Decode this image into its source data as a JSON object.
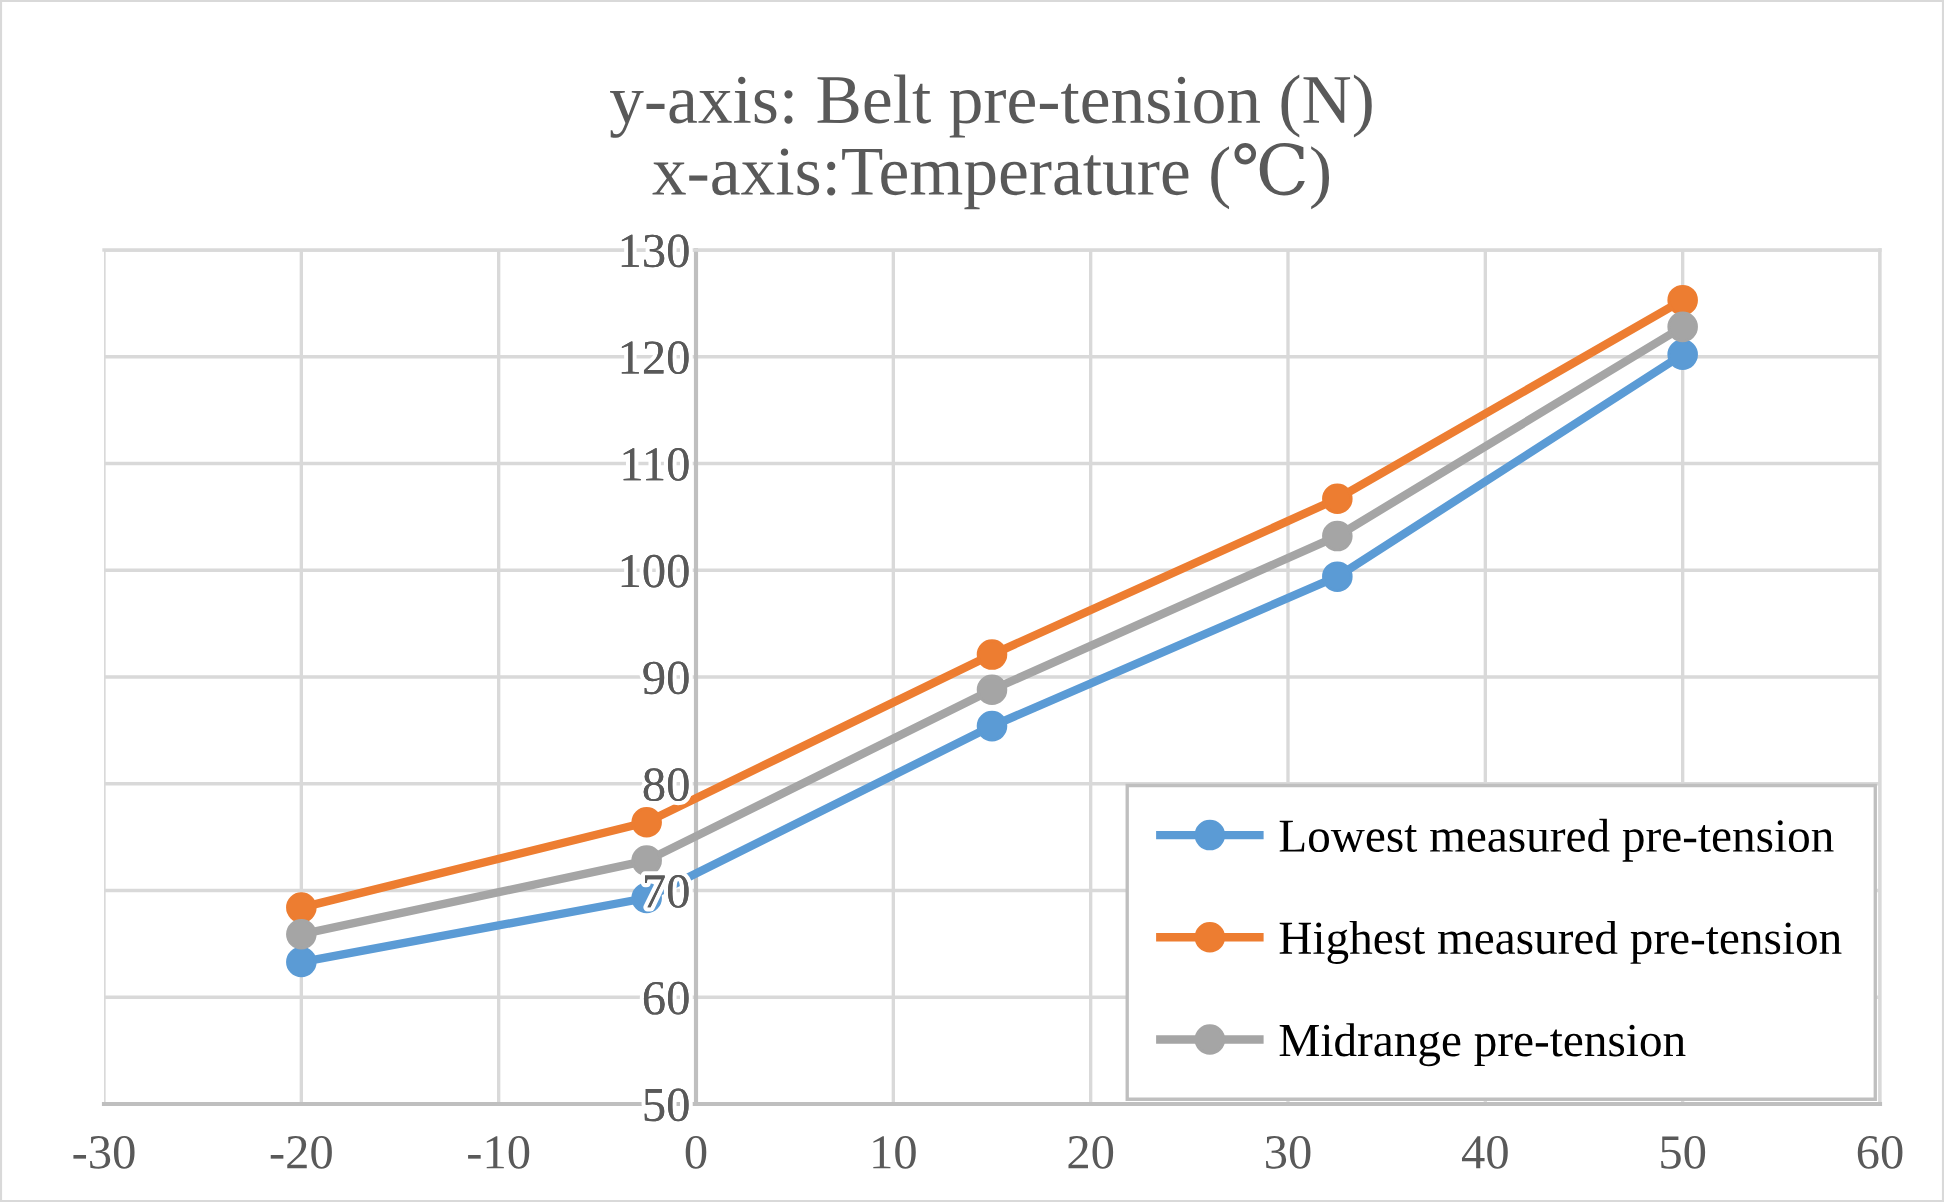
{
  "chart_data": {
    "type": "line",
    "title": "y-axis: Belt pre-tension (N)\nx-axis:Temperature (℃)",
    "x": [
      -20,
      -2.5,
      15,
      32.5,
      50
    ],
    "series": [
      {
        "name": "Lowest measured pre-tension",
        "color": "#5b9bd5",
        "values": [
          63.3,
          69.3,
          85.4,
          99.4,
          120.2
        ]
      },
      {
        "name": "Highest measured pre-tension",
        "color": "#ed7d31",
        "values": [
          68.4,
          76.4,
          92.1,
          106.7,
          125.3
        ]
      },
      {
        "name": "Midrange pre-tension",
        "color": "#a5a5a5",
        "values": [
          65.9,
          72.8,
          88.8,
          103.2,
          122.8
        ]
      }
    ],
    "xlim": [
      -30,
      60
    ],
    "xticks": [
      -30,
      -20,
      -10,
      0,
      10,
      20,
      30,
      40,
      50,
      60
    ],
    "ylim": [
      50,
      130
    ],
    "yticks": [
      50,
      60,
      70,
      80,
      90,
      100,
      110,
      120,
      130
    ],
    "grid": true,
    "legend": "bottom right",
    "marker": "circle",
    "line_style": "solid"
  }
}
